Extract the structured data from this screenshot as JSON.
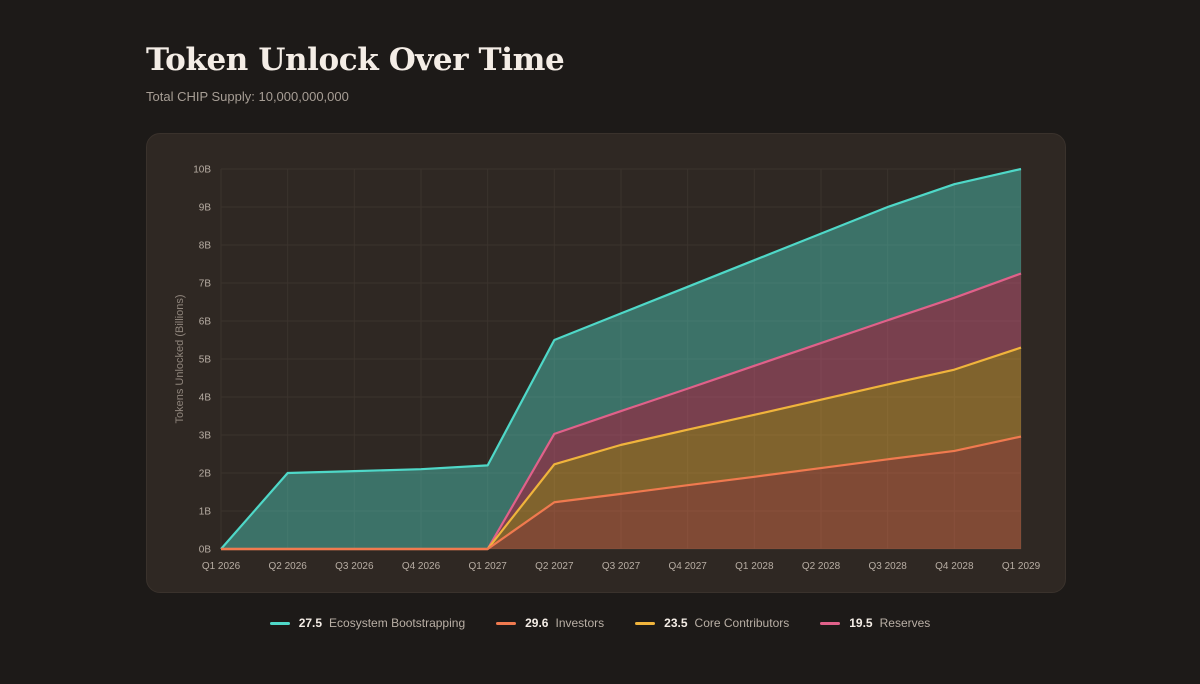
{
  "header": {
    "title": "Token Unlock Over Time",
    "subtitle": "Total CHIP Supply: 10,000,000,000"
  },
  "chart_data": {
    "type": "area",
    "stacked": true,
    "categories": [
      "Q1 2026",
      "Q2 2026",
      "Q3 2026",
      "Q4 2026",
      "Q1 2027",
      "Q2 2027",
      "Q3 2027",
      "Q4 2027",
      "Q1 2028",
      "Q2 2028",
      "Q3 2028",
      "Q4 2028",
      "Q1 2029"
    ],
    "ylabel": "Tokens Unlocked (Billions)",
    "ylim": [
      0,
      10
    ],
    "yticks": [
      0,
      1,
      2,
      3,
      4,
      5,
      6,
      7,
      8,
      9,
      10
    ],
    "ytick_suffix": "B",
    "grid": true,
    "series": [
      {
        "name": "Investors",
        "color": "#f07a4f",
        "cumulative": [
          0,
          0,
          0,
          0,
          0,
          1.23,
          1.45,
          1.68,
          1.9,
          2.13,
          2.36,
          2.58,
          2.96
        ]
      },
      {
        "name": "Core Contributors",
        "color": "#f0b43c",
        "cumulative": [
          0,
          0,
          0,
          0,
          0,
          2.23,
          2.74,
          3.14,
          3.53,
          3.93,
          4.33,
          4.72,
          5.3
        ]
      },
      {
        "name": "Reserves",
        "color": "#e0618a",
        "cumulative": [
          0,
          0,
          0,
          0,
          0,
          3.03,
          3.63,
          4.22,
          4.82,
          5.42,
          6.02,
          6.61,
          7.25
        ]
      },
      {
        "name": "Ecosystem Bootstrapping",
        "color": "#4fd8c8",
        "cumulative": [
          0,
          2,
          2.05,
          2.1,
          2.2,
          5.5,
          6.2,
          6.9,
          7.6,
          8.3,
          9.0,
          9.6,
          10.0
        ]
      }
    ]
  },
  "legend": [
    {
      "value": "27.5",
      "label": "Ecosystem Bootstrapping",
      "color": "#4fd8c8"
    },
    {
      "value": "29.6",
      "label": "Investors",
      "color": "#f07a4f"
    },
    {
      "value": "23.5",
      "label": "Core Contributors",
      "color": "#f0b43c"
    },
    {
      "value": "19.5",
      "label": "Reserves",
      "color": "#e0618a"
    }
  ]
}
